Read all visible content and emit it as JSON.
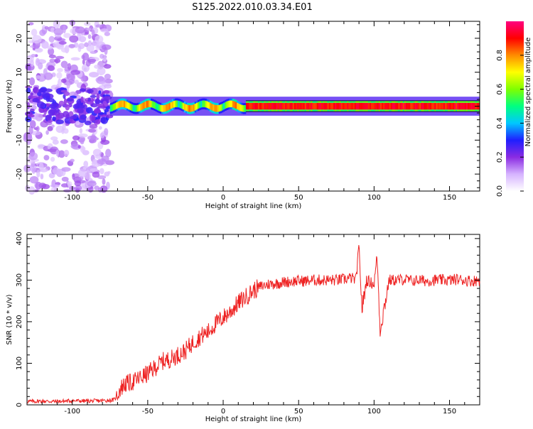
{
  "title": "S125.2022.010.03.34.E01",
  "chart_data": [
    {
      "type": "heatmap",
      "xlabel": "Height of straight line (km)",
      "ylabel": "Frequency (Hz)",
      "xlim": [
        -130,
        170
      ],
      "ylim": [
        -25,
        25
      ],
      "xticks": [
        -100,
        -50,
        0,
        50,
        100,
        150
      ],
      "yticks": [
        -20,
        -10,
        0,
        10,
        20
      ],
      "colorbar": {
        "label": "Normalized spectral amplitude",
        "range": [
          0,
          1
        ],
        "ticks": [
          0.0,
          0.2,
          0.4,
          0.6,
          0.8
        ],
        "tick_labels": [
          "0.0",
          "0.2",
          "0.4",
          "0.6",
          "0.8"
        ],
        "colormap": [
          "#ffffff",
          "#d6b3ff",
          "#8a2be2",
          "#1f1fff",
          "#00c8ff",
          "#00ff80",
          "#7fff00",
          "#ffff00",
          "#ff8c00",
          "#ff0000",
          "#ff0080"
        ]
      },
      "band": {
        "center_frequency_hz": 0,
        "half_width_hz": 1,
        "noise_region_x": [
          -130,
          -75
        ],
        "signal_start_x": -75,
        "strong_region_x": [
          15,
          170
        ]
      }
    },
    {
      "type": "line",
      "xlabel": "Height of straight line (km)",
      "ylabel": "SNR (10 * v/v)",
      "xlim": [
        -130,
        170
      ],
      "ylim": [
        0,
        410
      ],
      "xticks": [
        -100,
        -50,
        0,
        50,
        100,
        150
      ],
      "yticks": [
        0,
        100,
        200,
        300,
        400
      ],
      "color": "#ee2222",
      "series": [
        {
          "x": [
            -130,
            -120,
            -110,
            -100,
            -90,
            -80,
            -72,
            -68,
            -65,
            -60,
            -55,
            -50,
            -45,
            -40,
            -35,
            -30,
            -25,
            -20,
            -15,
            -10,
            -5,
            0,
            5,
            10,
            15,
            20,
            25,
            30,
            35,
            40,
            45,
            50,
            55,
            60,
            65,
            70,
            75,
            80,
            85,
            88,
            90,
            92,
            95,
            100,
            102,
            104,
            110,
            115,
            120,
            125,
            130,
            135,
            140,
            145,
            150,
            155,
            160,
            165,
            170
          ],
          "y": [
            8,
            9,
            8,
            10,
            9,
            10,
            12,
            40,
            50,
            55,
            65,
            75,
            90,
            105,
            110,
            120,
            130,
            150,
            165,
            175,
            195,
            210,
            225,
            245,
            260,
            275,
            285,
            290,
            292,
            295,
            297,
            298,
            298,
            300,
            300,
            300,
            300,
            302,
            305,
            300,
            380,
            230,
            300,
            290,
            360,
            180,
            300,
            300,
            302,
            298,
            300,
            298,
            300,
            300,
            300,
            302,
            300,
            298,
            300
          ]
        }
      ]
    }
  ]
}
